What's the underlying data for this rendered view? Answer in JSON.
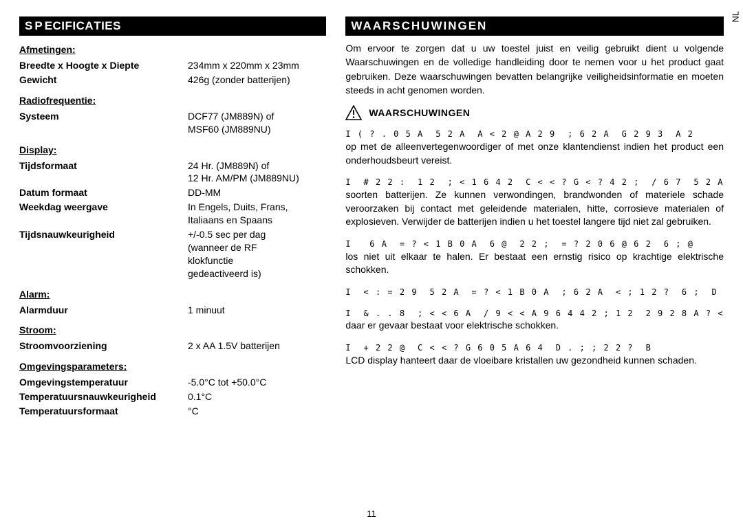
{
  "language_tag": "NL",
  "page_number": "11",
  "left": {
    "title": "SPECIFICATIES",
    "title_prefix": "SP",
    "title_mid": "ECIFICA",
    "title_suffix": "TIES",
    "groups": [
      {
        "heading": "Afmetingen:",
        "rows": [
          {
            "label": "Breedte x Hoogte x Diepte",
            "value": "234mm x 220mm x 23mm"
          },
          {
            "label": "Gewicht",
            "value": "426g (zonder batterijen)"
          }
        ]
      },
      {
        "heading": "Radiofrequentie:",
        "rows": [
          {
            "label": "Systeem",
            "value": "DCF77 (JM889N) of\nMSF60 (JM889NU)"
          }
        ]
      },
      {
        "heading": "Display:",
        "rows": [
          {
            "label": "Tijdsformaat",
            "value": "24 Hr. (JM889N) of\n12 Hr. AM/PM (JM889NU)"
          },
          {
            "label": "Datum formaat",
            "value": "DD-MM"
          },
          {
            "label": "Weekdag weergave",
            "value": "In Engels, Duits, Frans,\nItaliaans en Spaans"
          },
          {
            "label": "Tijdsnauwkeurigheid",
            "value": "+/-0.5 sec per dag\n(wanneer de RF\nklokfunctie\ngedeactiveerd is)"
          }
        ]
      },
      {
        "heading": "Alarm:",
        "rows": [
          {
            "label": "Alarmduur",
            "value": "1 minuut"
          }
        ]
      },
      {
        "heading": "Stroom:",
        "rows": [
          {
            "label": "Stroomvoorziening",
            "value": "2 x AA 1.5V         batterijen"
          }
        ]
      },
      {
        "heading": "Omgevingsparameters:",
        "rows": [
          {
            "label": "Omgevingstemperatuur",
            "value": "-5.0°C tot +50.0°C"
          },
          {
            "label": "Temperatuursnauwkeurigheid",
            "value": "0.1°C"
          },
          {
            "label": "Temperatuursformaat",
            "value": "°C"
          }
        ]
      }
    ]
  },
  "right": {
    "title": "WAARSCHUWINGEN",
    "intro": "Om ervoor te zorgen dat u uw toestel juist en veilig gebruikt dient u volgende Waarschuwingen en de volledige handleiding door te nemen voor u het product gaat gebruiken. Deze waarschuwingen bevatten belangrijke veiligheidsinformatie en moeten steeds in acht genomen worden.",
    "warn_title": "WAARSCHUWINGEN",
    "items": [
      {
        "encoded": "I ( ? . 0 5 A  5 2 A  A < 2 @ A 2 9  ; 6 2 A  G 2 9 3  A 2",
        "body": "op met de alleenvertegenwoordiger of met onze klantendienst indien het product een onderhoudsbeurt vereist."
      },
      {
        "encoded": "I  # 2 2 :  1 2  ; < 1 6 4 2  C < < ? G < ? 4 2 ;  / 6 7  5 2 A",
        "body": "soorten batterijen. Ze kunnen verwondingen, brandwonden of materiele schade veroorzaken bij contact met geleidende materialen, hitte, corrosieve materialen of explosieven. Verwijder de batterijen indien u het toestel langere tijd niet zal gebruiken."
      },
      {
        "encoded": "I   6 A  = ? < 1 B 0 A  6 @  2 2 ;  = ? 2 0 6 @ 6 2  6 ; @",
        "body": "los niet uit elkaar te halen. Er bestaat een ernstig risico op krachtige elektrische schokken."
      },
      {
        "encoded": "I  < : = 2 9  5 2 A  = ? < 1 B 0 A  ; 6 2 A  < ; 1 2 ?  6 ;  D",
        "body": ""
      },
      {
        "encoded": "I  & . . 8  ; < < 6 A  / 9 < < A 9 6 4 4 2 ; 1 2  2 9 2 8 A ? <",
        "body": "daar er gevaar bestaat voor elektrische schokken."
      },
      {
        "encoded": "I  + 2 2 @  C < < ? G 6 0 5 A 6 4  D . ; ; 2 2 ?  B",
        "body": "LCD display hanteert daar de vloeibare kristallen uw gezondheid kunnen schaden."
      }
    ]
  }
}
